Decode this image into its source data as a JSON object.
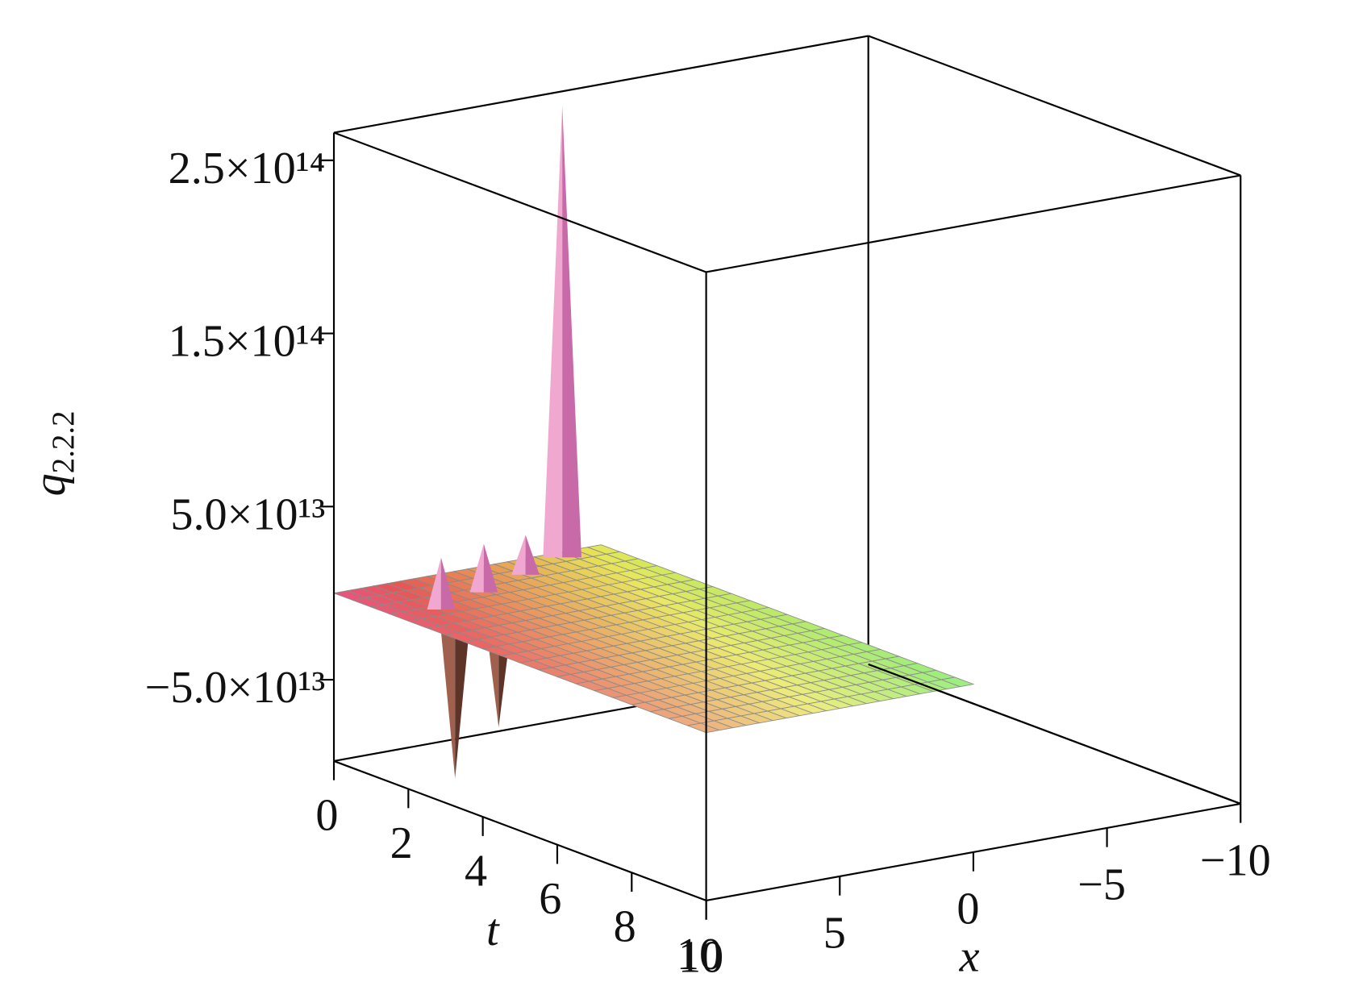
{
  "chart_data": {
    "type": "surface3d",
    "zlabel": {
      "text": "q",
      "subscript": "2.2.2"
    },
    "tlabel": "t",
    "xlabel": "x",
    "tlim": [
      0,
      10
    ],
    "xlim": [
      -10,
      10
    ],
    "zlim": [
      -97000000000000,
      266000000000000
    ],
    "tticks": [
      0,
      2,
      4,
      6,
      8,
      10
    ],
    "xticks": [
      10,
      5,
      0,
      {
        "value": -5,
        "label": "−5"
      },
      {
        "value": -10,
        "label": "−10"
      }
    ],
    "zticks": [
      {
        "value": 250000000000000,
        "label": "2.5×10¹⁴"
      },
      {
        "value": 150000000000000,
        "label": "1.5×10¹⁴"
      },
      {
        "value": 50000000000000,
        "label": "5.0×10¹³"
      },
      {
        "value": -50000000000000,
        "label": "−5.0×10¹³"
      }
    ],
    "t_domain": [
      0,
      10
    ],
    "x_domain": [
      0,
      10
    ],
    "peaks": {
      "t": [
        2.07,
        1.82,
        1.73,
        1.27,
        0.79,
        0.27
      ],
      "x": [
        8.35,
        6.37,
        8.4,
        6.16,
        3.93,
        1.83
      ],
      "values": [
        -95000000000000,
        -73000000000000,
        30000000000000,
        28000000000000,
        23000000000000,
        261000000000000
      ]
    }
  }
}
